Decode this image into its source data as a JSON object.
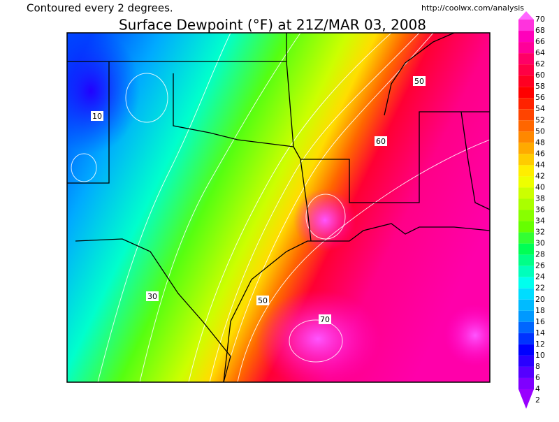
{
  "header": {
    "note": "Contoured every 2 degrees.",
    "source": "http://coolwx.com/analysis",
    "title": "Surface Dewpoint (°F) at 21Z/MAR 03, 2008"
  },
  "colorbar": {
    "levels": [
      70,
      68,
      66,
      64,
      62,
      60,
      58,
      56,
      54,
      52,
      50,
      48,
      46,
      44,
      42,
      40,
      38,
      36,
      34,
      32,
      30,
      28,
      26,
      24,
      22,
      20,
      18,
      16,
      14,
      12,
      10,
      8,
      6,
      4,
      2
    ],
    "colors": [
      "#ff66ff",
      "#ff33dd",
      "#ff00bb",
      "#ff0099",
      "#ff0066",
      "#ff0044",
      "#ff0022",
      "#ff0000",
      "#ff2200",
      "#ff4400",
      "#ff6600",
      "#ff8800",
      "#ffaa00",
      "#ffcc00",
      "#ffee00",
      "#eeff00",
      "#ccff00",
      "#aaff00",
      "#88ff00",
      "#66ff00",
      "#33ff33",
      "#00ff55",
      "#00ff88",
      "#00ffbb",
      "#00ffee",
      "#00ddff",
      "#00bbff",
      "#0099ff",
      "#0066ff",
      "#0033ff",
      "#0000ff",
      "#2a00ff",
      "#5500ff",
      "#7f00ff",
      "#9900ff"
    ]
  },
  "contour_labels": [
    10,
    30,
    50,
    50,
    60,
    70
  ]
}
